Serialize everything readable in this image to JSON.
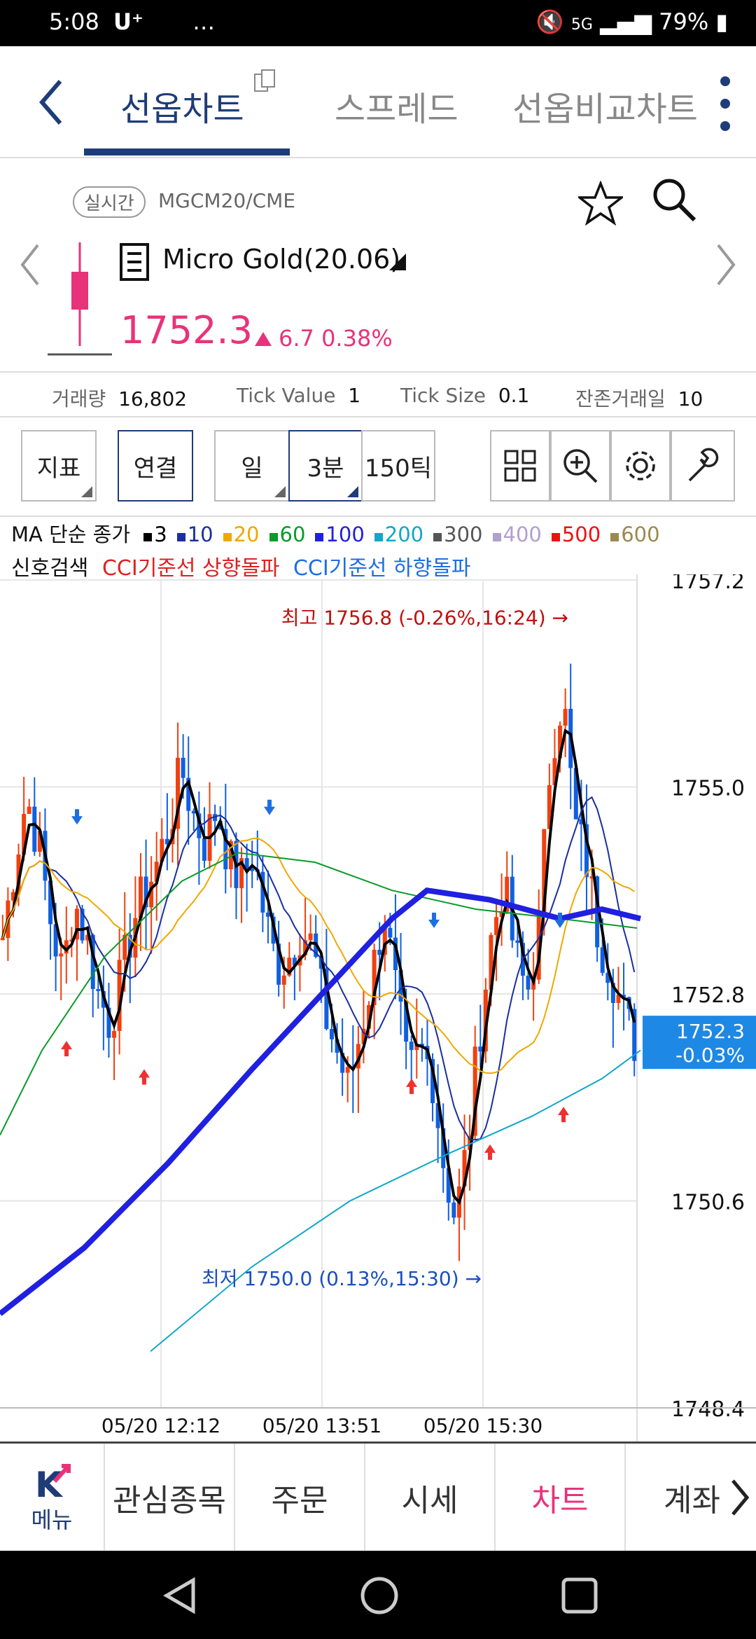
{
  "status": {
    "time": "5:08",
    "carrier": "U⁺",
    "extra": "…",
    "network": "5G",
    "battery": "79%"
  },
  "tabs": [
    "선옵차트",
    "스프레드",
    "선옵비교차트"
  ],
  "info": {
    "realtime": "실시간",
    "code": "MGCM20/CME",
    "name": "Micro Gold(20.06)",
    "price": "1752.3",
    "change": "6.7",
    "change_pct": "0.38%"
  },
  "stats": [
    {
      "label": "거래량",
      "value": "16,802"
    },
    {
      "label": "Tick Value",
      "value": "1"
    },
    {
      "label": "Tick Size",
      "value": "0.1"
    },
    {
      "label": "잔존거래일",
      "value": "10"
    }
  ],
  "toolbar": {
    "indicator": "지표",
    "link": "연결",
    "day": "일",
    "min": "3분",
    "tick": "150틱"
  },
  "ma_legend": {
    "prefix": "MA 단순 종가",
    "items": [
      {
        "label": "3",
        "color": "#000000"
      },
      {
        "label": "10",
        "color": "#1a2fa0"
      },
      {
        "label": "20",
        "color": "#f0a800"
      },
      {
        "label": "60",
        "color": "#0a9a2a"
      },
      {
        "label": "100",
        "color": "#2020e0"
      },
      {
        "label": "200",
        "color": "#10a8c8"
      },
      {
        "label": "300",
        "color": "#555555"
      },
      {
        "label": "400",
        "color": "#b0a0d0"
      },
      {
        "label": "500",
        "color": "#ee1111"
      },
      {
        "label": "600",
        "color": "#9a8a50"
      }
    ]
  },
  "signals": {
    "label": "신호검색",
    "up": "CCI기준선 상향돌파",
    "down": "CCI기준선 하향돌파"
  },
  "chart_data": {
    "type": "candlestick",
    "y_ticks": [
      "1757.2",
      "1755.0",
      "1752.8",
      "1750.6",
      "1748.4"
    ],
    "x_ticks": [
      "05/20 12:12",
      "05/20 13:51",
      "05/20 15:30"
    ],
    "high_label": "최고 1756.8 (-0.26%,16:24) →",
    "low_label": "최저 1750.0 (0.13%,15:30) →",
    "current_price": "1752.3",
    "current_pct": "-0.03%",
    "ylim": [
      1748.4,
      1757.2
    ],
    "close_path": [
      1753.4,
      1754.2,
      1754.9,
      1754.4,
      1753.6,
      1753.0,
      1753.8,
      1753.4,
      1752.8,
      1752.5,
      1753.0,
      1753.6,
      1753.9,
      1754.2,
      1754.6,
      1755.2,
      1754.7,
      1754.4,
      1754.8,
      1754.2,
      1754.0,
      1754.3,
      1753.6,
      1753.1,
      1753.2,
      1753.5,
      1753.3,
      1752.6,
      1752.2,
      1751.8,
      1752.4,
      1753.0,
      1753.7,
      1752.8,
      1751.9,
      1752.2,
      1752.0,
      1751.0,
      1750.4,
      1751.2,
      1752.4,
      1753.4,
      1754.0,
      1753.2,
      1752.8,
      1753.5,
      1755.4,
      1756.0,
      1754.6,
      1754.2,
      1753.4,
      1753.1,
      1752.6,
      1752.3
    ]
  },
  "bottomnav": [
    "메뉴",
    "관심종목",
    "주문",
    "시세",
    "차트",
    "계좌"
  ]
}
